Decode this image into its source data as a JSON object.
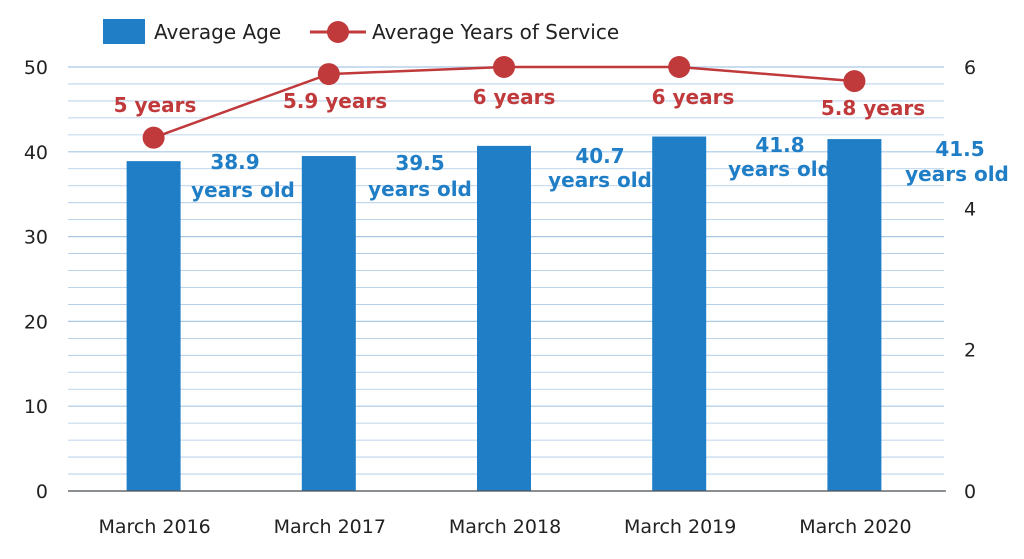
{
  "chart_data": {
    "type": "bar",
    "categories": [
      "March 2016",
      "March 2017",
      "March 2018",
      "March 2019",
      "March 2020"
    ],
    "series": [
      {
        "name": "Average Age",
        "type": "bar",
        "axis": "left",
        "values": [
          38.9,
          39.5,
          40.7,
          41.8,
          41.5
        ],
        "labels": [
          [
            "38.9",
            "years old"
          ],
          [
            "39.5",
            "years old"
          ],
          [
            "40.7",
            "years old"
          ],
          [
            "41.8",
            "years old"
          ],
          [
            "41.5",
            "years old"
          ]
        ],
        "color": "#1f7ec6"
      },
      {
        "name": "Average Years of Service",
        "type": "line",
        "axis": "right",
        "values": [
          5,
          5.9,
          6,
          6,
          5.8
        ],
        "labels": [
          "5 years",
          "5.9 years",
          "6 years",
          "6 years",
          "5.8 years"
        ],
        "color": "#c0393b"
      }
    ],
    "y_left": {
      "range": [
        0,
        50
      ],
      "ticks": [
        "0",
        "10",
        "20",
        "30",
        "40",
        "50"
      ]
    },
    "y_right": {
      "range": [
        0,
        6
      ],
      "ticks": [
        "0",
        "2",
        "4",
        "6"
      ]
    },
    "grid": true,
    "gridline_color": "#a9c8e6",
    "legend_position": "top-left"
  }
}
